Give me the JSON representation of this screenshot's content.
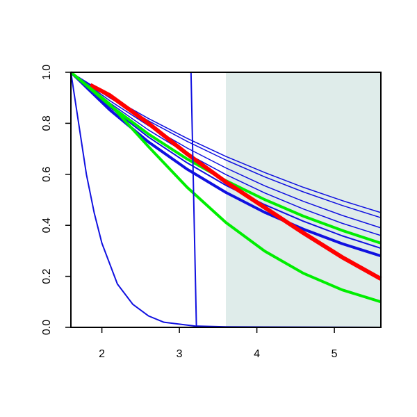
{
  "chart_data": {
    "type": "line",
    "xlim": [
      1.6,
      5.6
    ],
    "ylim": [
      0,
      1
    ],
    "xticks": [
      2,
      3,
      4,
      5
    ],
    "yticks": [
      {
        "value": 0,
        "label": "0.0"
      },
      0.2,
      0.4,
      0.6,
      0.8,
      {
        "value": 1,
        "label": "1.0"
      }
    ],
    "shaded_x": [
      3.6,
      5.6
    ],
    "shade_color": "#dfecea",
    "series": [
      {
        "color": "#1010e0",
        "width": 1.5,
        "x": [
          1.6,
          2.1,
          2.6,
          3.1,
          3.6,
          4.1,
          4.6,
          5.1,
          5.6
        ],
        "values": [
          1,
          0.905,
          0.819,
          0.741,
          0.67,
          0.607,
          0.549,
          0.497,
          0.45
        ]
      },
      {
        "color": "#1010e0",
        "width": 1.5,
        "x": [
          1.6,
          2.1,
          2.6,
          3.1,
          3.6,
          4.1,
          4.6,
          5.1,
          5.6
        ],
        "values": [
          1,
          0.9,
          0.81,
          0.729,
          0.656,
          0.59,
          0.531,
          0.478,
          0.43
        ]
      },
      {
        "color": "#1010e0",
        "width": 1.5,
        "x": [
          1.6,
          2.1,
          2.6,
          3.1,
          3.6,
          4.1,
          4.6,
          5.1,
          5.6
        ],
        "values": [
          1,
          0.889,
          0.791,
          0.703,
          0.625,
          0.555,
          0.494,
          0.439,
          0.39
        ]
      },
      {
        "color": "#1010e0",
        "width": 1.5,
        "x": [
          1.6,
          2.1,
          2.6,
          3.1,
          3.6,
          4.1,
          4.6,
          5.1,
          5.6
        ],
        "values": [
          1,
          0.88,
          0.774,
          0.681,
          0.599,
          0.527,
          0.464,
          0.408,
          0.36
        ]
      },
      {
        "color": "#1010e0",
        "width": 2,
        "x": [
          1.6,
          2.1,
          2.6,
          3.1,
          3.6,
          4.1,
          4.6,
          5.1,
          5.6
        ],
        "values": [
          1,
          0.864,
          0.746,
          0.645,
          0.557,
          0.481,
          0.416,
          0.359,
          0.31
        ]
      },
      {
        "color": "#1010e0",
        "width": 4,
        "x": [
          1.6,
          2.1,
          2.6,
          3.1,
          3.6,
          4.1,
          4.6,
          5.1,
          5.6
        ],
        "values": [
          1,
          0.853,
          0.727,
          0.62,
          0.529,
          0.451,
          0.385,
          0.328,
          0.28
        ]
      },
      {
        "color": "#00ee00",
        "width": 4,
        "x": [
          1.6,
          2.1,
          2.6,
          3.1,
          3.6,
          4.1,
          4.6,
          5.1,
          5.6
        ],
        "values": [
          1,
          0.871,
          0.758,
          0.66,
          0.575,
          0.501,
          0.436,
          0.38,
          0.33
        ]
      },
      {
        "color": "#ff0000",
        "width": 6,
        "x": [
          1.85,
          2.1,
          2.6,
          3.1,
          3.6,
          4.1,
          4.6,
          5.1,
          5.6
        ],
        "values": [
          0.95,
          0.91,
          0.8,
          0.68,
          0.57,
          0.47,
          0.37,
          0.275,
          0.19
        ]
      },
      {
        "color": "#00ee00",
        "width": 4,
        "x": [
          1.6,
          2.1,
          2.6,
          3.1,
          3.6,
          4.1,
          4.6,
          5.1,
          5.6
        ],
        "values": [
          1,
          0.876,
          0.709,
          0.549,
          0.411,
          0.299,
          0.212,
          0.147,
          0.1
        ]
      },
      {
        "color": "#1010e0",
        "width": 2,
        "x": [
          1.6,
          1.7,
          1.8,
          1.9,
          2.0,
          2.2,
          2.4,
          2.6,
          2.8,
          3.2,
          3.6,
          5.6
        ],
        "values": [
          1,
          0.8,
          0.6,
          0.45,
          0.33,
          0.17,
          0.09,
          0.045,
          0.02,
          0.005,
          0.002,
          0
        ]
      },
      {
        "color": "#1010e0",
        "width": 2,
        "x": [
          1.6,
          3.15,
          3.22,
          5.6
        ],
        "values": [
          1,
          1,
          0,
          0
        ]
      }
    ]
  }
}
